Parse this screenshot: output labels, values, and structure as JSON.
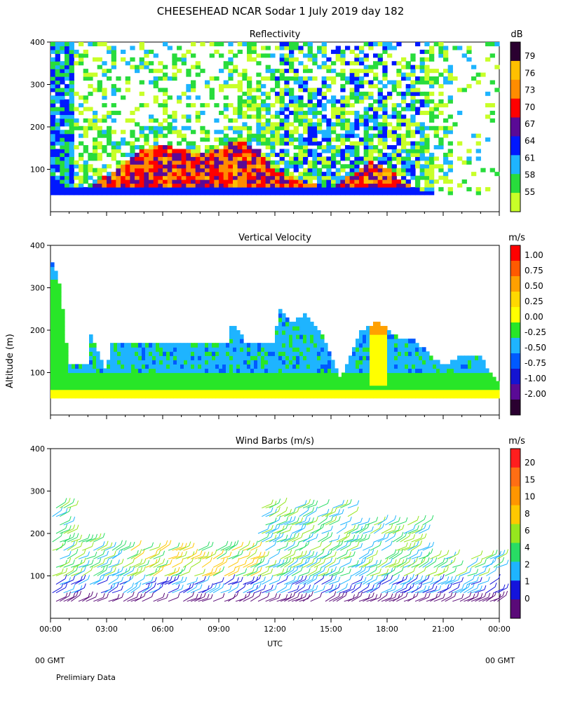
{
  "title": "CHEESEHEAD  NCAR Sodar   1 July 2019  day 182",
  "y_axis_label": "Altitude (m)",
  "x_axis_label": "UTC",
  "footer": {
    "left_gmt": "00 GMT",
    "right_gmt": "00 GMT",
    "note": "Prelimiary Data"
  },
  "chart_data": [
    {
      "type": "heatmap",
      "title": "Reflectivity",
      "colorbar_unit": "dB",
      "colorbar_labels": [
        "79",
        "76",
        "73",
        "70",
        "67",
        "64",
        "61",
        "58",
        "55"
      ],
      "colorbar_colors": [
        "#2a0030",
        "#ffc000",
        "#ff8c00",
        "#ff0000",
        "#5a0a96",
        "#0018ff",
        "#1eb4ff",
        "#28dc3c",
        "#c8ff28"
      ],
      "xlim": [
        0,
        24
      ],
      "ylim": [
        0,
        400
      ],
      "yticks": [
        100,
        200,
        300,
        400
      ],
      "xticks": [
        "00:00",
        "03:00",
        "06:00",
        "09:00",
        "12:00",
        "15:00",
        "18:00",
        "21:00",
        "00:00"
      ],
      "mixing_top": [
        [
          0,
          55
        ],
        [
          1,
          55
        ],
        [
          2,
          55
        ],
        [
          3,
          85
        ],
        [
          4,
          120
        ],
        [
          5,
          150
        ],
        [
          6,
          155
        ],
        [
          7,
          150
        ],
        [
          8,
          135
        ],
        [
          9,
          150
        ],
        [
          10,
          170
        ],
        [
          11,
          150
        ],
        [
          12,
          100
        ],
        [
          13,
          80
        ],
        [
          14,
          65
        ],
        [
          15,
          55
        ],
        [
          16,
          85
        ],
        [
          17,
          120
        ],
        [
          18,
          105
        ],
        [
          19,
          65
        ],
        [
          20,
          50
        ],
        [
          21,
          40
        ],
        [
          22,
          40
        ],
        [
          23,
          40
        ],
        [
          24,
          40
        ]
      ]
    },
    {
      "type": "heatmap",
      "title": "Vertical Velocity",
      "colorbar_unit": "m/s",
      "colorbar_labels": [
        "1.00",
        "0.75",
        "0.50",
        "0.25",
        "0.00",
        "-0.25",
        "-0.50",
        "-0.75",
        "-1.00",
        "-2.00"
      ],
      "colorbar_colors": [
        "#ff0000",
        "#ff5a00",
        "#ffa000",
        "#ffd800",
        "#ffff00",
        "#28e628",
        "#1eb4ff",
        "#005aff",
        "#1414d2",
        "#5a0a96",
        "#2a0030"
      ],
      "xlim": [
        0,
        24
      ],
      "ylim": [
        0,
        400
      ],
      "yticks": [
        100,
        200,
        300,
        400
      ],
      "xticks": [
        "00:00",
        "03:00",
        "06:00",
        "09:00",
        "12:00",
        "15:00",
        "18:00",
        "21:00",
        "00:00"
      ],
      "data_top": [
        [
          0,
          370
        ],
        [
          0.5,
          300
        ],
        [
          1,
          110
        ],
        [
          2,
          110
        ],
        [
          2.1,
          190
        ],
        [
          3,
          100
        ],
        [
          3.2,
          160
        ],
        [
          9.5,
          160
        ],
        [
          9.7,
          220
        ],
        [
          10.5,
          160
        ],
        [
          12,
          160
        ],
        [
          12.2,
          255
        ],
        [
          12.8,
          210
        ],
        [
          13.6,
          235
        ],
        [
          14.5,
          190
        ],
        [
          15.5,
          80
        ],
        [
          16.5,
          190
        ],
        [
          17.5,
          215
        ],
        [
          18.5,
          180
        ],
        [
          19.5,
          170
        ],
        [
          20.5,
          130
        ],
        [
          21,
          110
        ],
        [
          22,
          140
        ],
        [
          23,
          130
        ],
        [
          24,
          70
        ]
      ]
    },
    {
      "type": "scatter",
      "title": "Wind Barbs (m/s)",
      "colorbar_unit": "m/s",
      "colorbar_labels": [
        "20",
        "15",
        "10",
        "8",
        "6",
        "4",
        "2",
        "1",
        "0"
      ],
      "colorbar_colors": [
        "#ff1e1e",
        "#ff6e14",
        "#ff9600",
        "#ffc800",
        "#96e61e",
        "#28dc64",
        "#1eb4ff",
        "#1414dc",
        "#5a0a78"
      ],
      "xlim": [
        0,
        24
      ],
      "ylim": [
        0,
        400
      ],
      "yticks": [
        100,
        200,
        300,
        400
      ],
      "xticks": [
        "00:00",
        "03:00",
        "06:00",
        "09:00",
        "12:00",
        "15:00",
        "18:00",
        "21:00",
        "00:00"
      ],
      "levels": [
        40,
        60,
        80,
        100,
        120,
        140,
        160,
        180,
        200,
        220,
        240,
        260
      ]
    }
  ]
}
